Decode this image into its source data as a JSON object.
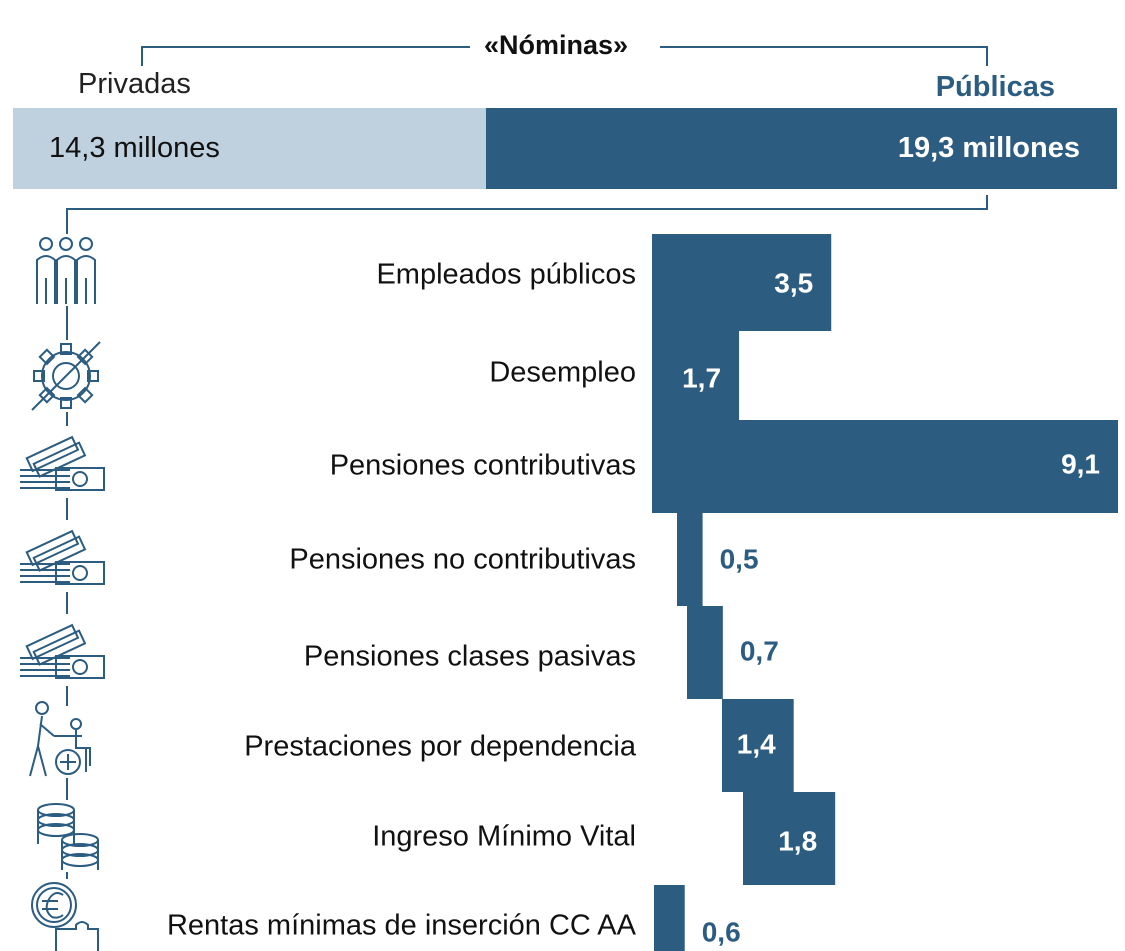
{
  "header": {
    "title": "«Nóminas»",
    "left_label": "Privadas",
    "right_label": "Públicas"
  },
  "split": {
    "private": {
      "label": "14,3 millones",
      "value": 14.3,
      "color": "#bfd0de"
    },
    "public": {
      "label": "19,3 millones",
      "value": 19.3,
      "color": "#2c5d81"
    }
  },
  "chart_data": {
    "type": "bar",
    "orientation": "horizontal",
    "categories": [
      "Empleados públicos",
      "Desempleo",
      "Pensiones contributivas",
      "Pensiones no contributivas",
      "Pensiones clases pasivas",
      "Prestaciones por dependencia",
      "Ingreso Mínimo Vital",
      "Rentas mínimas de inserción CC AA"
    ],
    "values": [
      3.5,
      1.7,
      9.1,
      0.5,
      0.7,
      1.4,
      1.8,
      0.6
    ],
    "value_labels": [
      "3,5",
      "1,7",
      "9,1",
      "0,5",
      "0,7",
      "1,4",
      "1,8",
      "0,6"
    ],
    "icons": [
      "people-icon",
      "gear-icon",
      "banknotes-icon",
      "banknotes-icon",
      "banknotes-icon",
      "wheelchair-icon",
      "coin-stack-icon",
      "euro-puzzle-icon"
    ],
    "xlim": [
      0,
      9.1
    ],
    "bar_color": "#2c5d81",
    "light_color": "#bfd0de",
    "grid": false,
    "legend": "none"
  }
}
